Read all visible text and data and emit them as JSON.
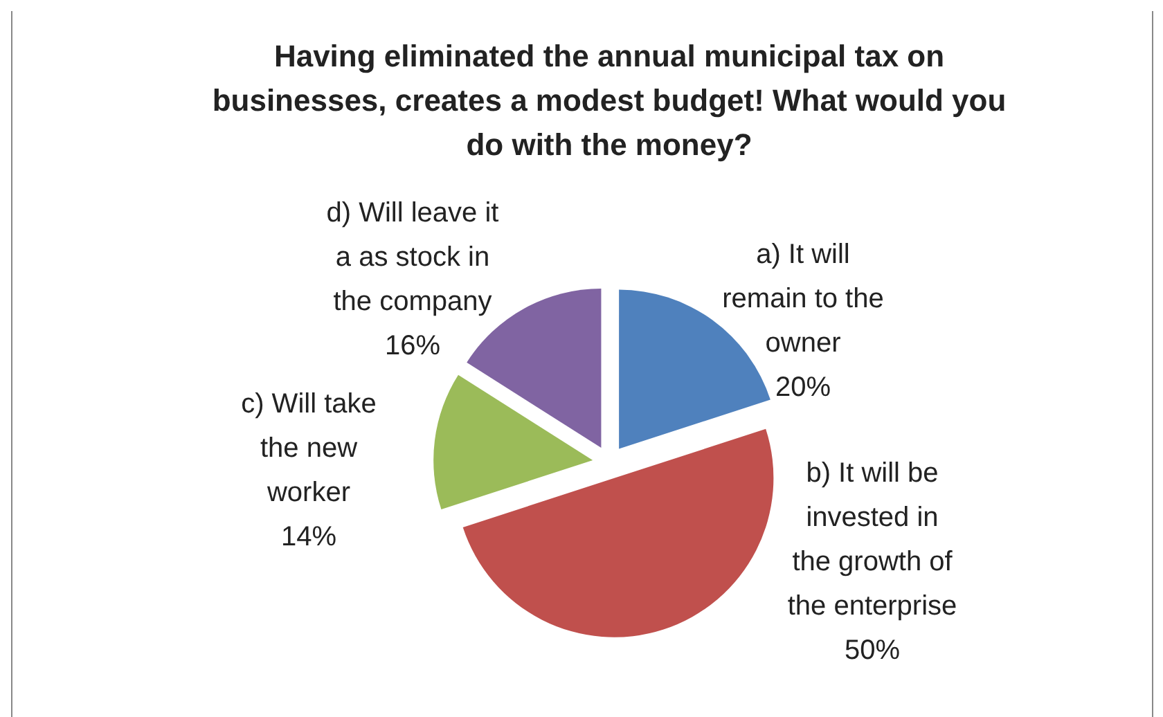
{
  "chart_data": {
    "type": "pie",
    "title": "Having eliminated the annual municipal tax on businesses, creates a modest budget! What would you do with the money?",
    "categories": [
      "a) It will remain to the owner",
      "b) It will be invested in the growth of the enterprise",
      "c) Will take the new worker",
      "d) Will leave it a as stock in the company"
    ],
    "values": [
      20,
      50,
      14,
      16
    ],
    "value_labels": [
      "20%",
      "50%",
      "14%",
      "16%"
    ],
    "colors": [
      "#4f81bd",
      "#c0504d",
      "#9bbb59",
      "#8064a2"
    ]
  }
}
